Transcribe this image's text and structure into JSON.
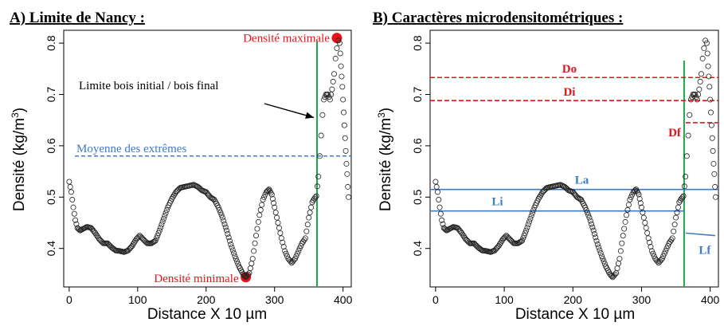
{
  "colors": {
    "red": "#e8141a",
    "blue": "#3f7bc6",
    "green": "#1aa64a",
    "ink": "#222222"
  },
  "chart_data": [
    {
      "type": "scatter",
      "title": "A) Limite de Nancy :",
      "xlabel": "Distance X 10 µm",
      "ylabel_main": "Densité (kg/m",
      "ylabel_sup": "3",
      "ylabel_end": ")",
      "xlim": [
        -8,
        412
      ],
      "ylim": [
        0.325,
        0.825
      ],
      "xticks": [
        0,
        100,
        200,
        300,
        400
      ],
      "xtick_labels": [
        "0",
        "100",
        "200",
        "300",
        "400"
      ],
      "yticks": [
        0.4,
        0.5,
        0.6,
        0.7,
        0.8
      ],
      "ytick_labels": [
        "0.4",
        "0.5",
        "0.6",
        "0.7",
        "0.8"
      ],
      "profile": [
        [
          0,
          0.53
        ],
        [
          3,
          0.51
        ],
        [
          6,
          0.48
        ],
        [
          9,
          0.455
        ],
        [
          12,
          0.44
        ],
        [
          16,
          0.435
        ],
        [
          20,
          0.438
        ],
        [
          26,
          0.442
        ],
        [
          32,
          0.44
        ],
        [
          38,
          0.43
        ],
        [
          44,
          0.418
        ],
        [
          50,
          0.41
        ],
        [
          56,
          0.41
        ],
        [
          62,
          0.402
        ],
        [
          68,
          0.396
        ],
        [
          74,
          0.395
        ],
        [
          80,
          0.393
        ],
        [
          86,
          0.396
        ],
        [
          92,
          0.405
        ],
        [
          98,
          0.418
        ],
        [
          103,
          0.425
        ],
        [
          108,
          0.418
        ],
        [
          114,
          0.41
        ],
        [
          120,
          0.41
        ],
        [
          126,
          0.415
        ],
        [
          132,
          0.435
        ],
        [
          138,
          0.458
        ],
        [
          144,
          0.48
        ],
        [
          150,
          0.497
        ],
        [
          156,
          0.51
        ],
        [
          162,
          0.518
        ],
        [
          168,
          0.52
        ],
        [
          175,
          0.522
        ],
        [
          182,
          0.524
        ],
        [
          188,
          0.52
        ],
        [
          194,
          0.513
        ],
        [
          200,
          0.51
        ],
        [
          206,
          0.5
        ],
        [
          212,
          0.495
        ],
        [
          218,
          0.48
        ],
        [
          224,
          0.46
        ],
        [
          230,
          0.435
        ],
        [
          236,
          0.408
        ],
        [
          242,
          0.385
        ],
        [
          248,
          0.365
        ],
        [
          254,
          0.35
        ],
        [
          258,
          0.344
        ],
        [
          263,
          0.352
        ],
        [
          268,
          0.38
        ],
        [
          273,
          0.425
        ],
        [
          278,
          0.465
        ],
        [
          283,
          0.495
        ],
        [
          288,
          0.51
        ],
        [
          292,
          0.515
        ],
        [
          296,
          0.505
        ],
        [
          300,
          0.48
        ],
        [
          305,
          0.45
        ],
        [
          310,
          0.42
        ],
        [
          315,
          0.395
        ],
        [
          320,
          0.38
        ],
        [
          325,
          0.372
        ],
        [
          330,
          0.38
        ],
        [
          335,
          0.395
        ],
        [
          340,
          0.41
        ],
        [
          345,
          0.42
        ],
        [
          350,
          0.46
        ],
        [
          355,
          0.49
        ],
        [
          358,
          0.497
        ],
        [
          361,
          0.502
        ],
        [
          364,
          0.54
        ],
        [
          366,
          0.58
        ],
        [
          368,
          0.62
        ],
        [
          370,
          0.66
        ],
        [
          372,
          0.69
        ],
        [
          375,
          0.7
        ],
        [
          378,
          0.7
        ],
        [
          381,
          0.69
        ],
        [
          384,
          0.71
        ],
        [
          387,
          0.74
        ],
        [
          389,
          0.77
        ],
        [
          391,
          0.79
        ],
        [
          393,
          0.805
        ],
        [
          395,
          0.8
        ],
        [
          396,
          0.78
        ],
        [
          397,
          0.755
        ],
        [
          398,
          0.735
        ],
        [
          399,
          0.715
        ],
        [
          400,
          0.69
        ],
        [
          401,
          0.665
        ],
        [
          402,
          0.64
        ],
        [
          403,
          0.615
        ],
        [
          404,
          0.59
        ],
        [
          405,
          0.565
        ],
        [
          406,
          0.545
        ],
        [
          407,
          0.52
        ],
        [
          408,
          0.5
        ]
      ],
      "threshold": {
        "label": "Moyenne des extrêmes",
        "y": 0.58
      },
      "boundary_x": 362,
      "min_point": {
        "label": "Densité minimale",
        "x": 258,
        "y": 0.344
      },
      "max_point": {
        "label": "Densité maximale",
        "x": 391,
        "y": 0.81
      },
      "arrow_label": "Limite bois initial / bois final"
    },
    {
      "type": "scatter",
      "title": "B) Caractères microdensitométriques :",
      "xlabel": "Distance X 10 µm",
      "ylabel_main": "Densité (kg/m",
      "ylabel_sup": "3",
      "ylabel_end": ")",
      "xlim": [
        -8,
        412
      ],
      "ylim": [
        0.325,
        0.825
      ],
      "xticks": [
        0,
        100,
        200,
        300,
        400
      ],
      "xtick_labels": [
        "0",
        "100",
        "200",
        "300",
        "400"
      ],
      "yticks": [
        0.4,
        0.5,
        0.6,
        0.7,
        0.8
      ],
      "ytick_labels": [
        "0.4",
        "0.5",
        "0.6",
        "0.7",
        "0.8"
      ],
      "boundary_x": 362,
      "annotations": {
        "Do": {
          "label": "Do",
          "y": 0.733
        },
        "Di": {
          "label": "Di",
          "y": 0.688
        },
        "Df": {
          "label": "Df",
          "y": 0.645
        },
        "La": {
          "label": "La",
          "y": 0.515
        },
        "Li": {
          "label": "Li",
          "y": 0.473
        },
        "Lf": {
          "label": "Lf",
          "y_start": 0.43,
          "y_end": 0.425
        }
      }
    }
  ]
}
